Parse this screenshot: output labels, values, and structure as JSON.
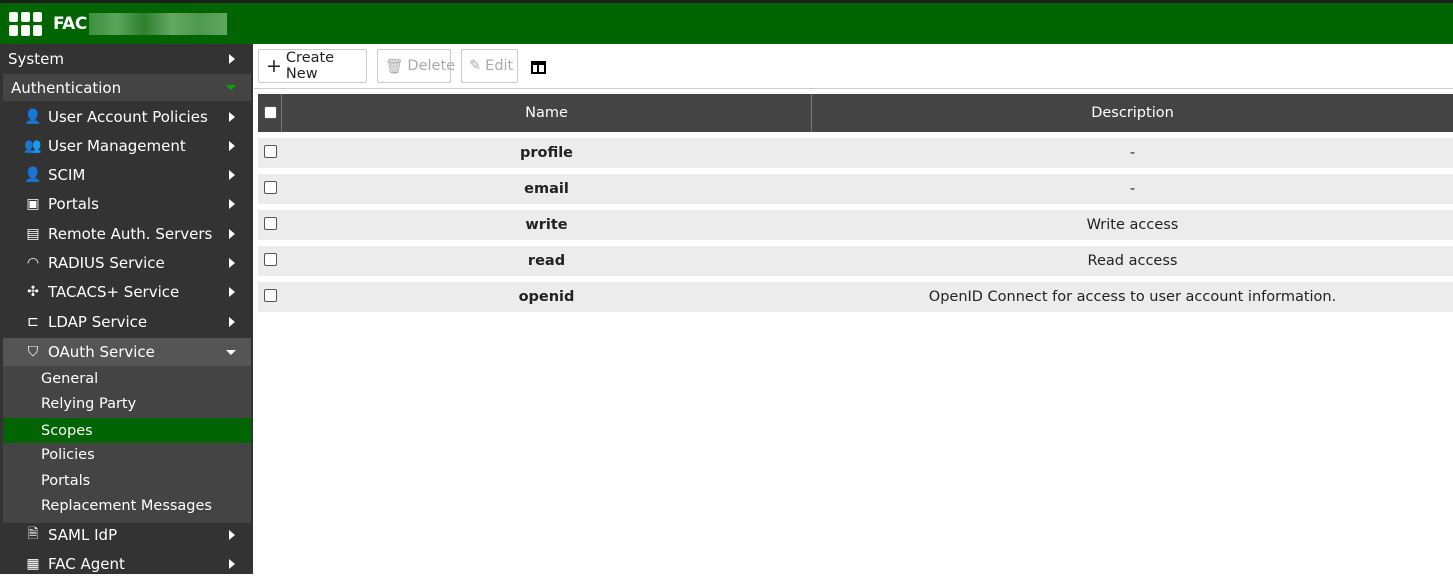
{
  "header": {
    "title": "FAC",
    "brand_color": "#006400"
  },
  "sidebar": {
    "top": [
      {
        "label": "System"
      },
      {
        "label": "Authentication"
      }
    ],
    "items": [
      {
        "label": "User Account Policies",
        "icon": "user-wrench-icon"
      },
      {
        "label": "User Management",
        "icon": "users-icon"
      },
      {
        "label": "SCIM",
        "icon": "user-sync-icon"
      },
      {
        "label": "Portals",
        "icon": "portal-icon"
      },
      {
        "label": "Remote Auth. Servers",
        "icon": "server-icon"
      },
      {
        "label": "RADIUS Service",
        "icon": "wifi-icon"
      },
      {
        "label": "TACACS+ Service",
        "icon": "network-icon"
      },
      {
        "label": "LDAP Service",
        "icon": "tree-icon"
      },
      {
        "label": "OAuth Service",
        "icon": "shield-key-icon"
      }
    ],
    "oauth_sub": [
      {
        "label": "General"
      },
      {
        "label": "Relying Party"
      },
      {
        "label": "Scopes",
        "active": true
      },
      {
        "label": "Policies"
      },
      {
        "label": "Portals"
      },
      {
        "label": "Replacement Messages"
      }
    ],
    "bottom": [
      {
        "label": "SAML IdP",
        "icon": "document-icon"
      },
      {
        "label": "FAC Agent",
        "icon": "agent-icon"
      }
    ]
  },
  "toolbar": {
    "create": "Create New",
    "delete": "Delete",
    "edit": "Edit"
  },
  "table": {
    "columns": [
      "Name",
      "Description"
    ],
    "rows": [
      {
        "name": "profile",
        "description": "-"
      },
      {
        "name": "email",
        "description": "-"
      },
      {
        "name": "write",
        "description": "Write access"
      },
      {
        "name": "read",
        "description": "Read access"
      },
      {
        "name": "openid",
        "description": "OpenID Connect for access to user account information."
      }
    ]
  }
}
